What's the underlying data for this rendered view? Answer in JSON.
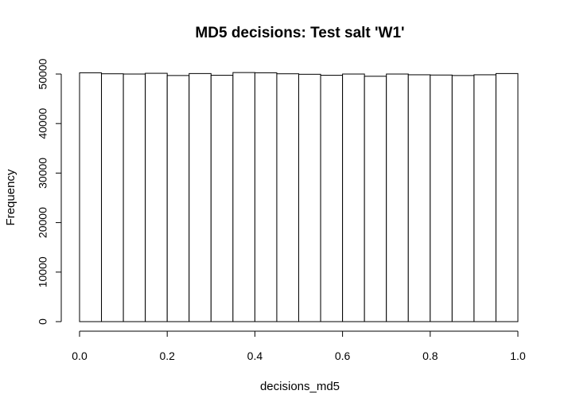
{
  "chart_data": {
    "type": "bar",
    "title": "MD5 decisions: Test salt 'W1'",
    "xlabel": "decisions_md5",
    "ylabel": "Frequency",
    "xlim": [
      0,
      1
    ],
    "ylim": [
      0,
      50000
    ],
    "bin_edges": [
      0.0,
      0.05,
      0.1,
      0.15,
      0.2,
      0.25,
      0.3,
      0.35,
      0.4,
      0.45,
      0.5,
      0.55,
      0.6,
      0.65,
      0.7,
      0.75,
      0.8,
      0.85,
      0.9,
      0.95,
      1.0
    ],
    "values": [
      50250,
      50050,
      50000,
      50150,
      49700,
      50100,
      49750,
      50300,
      50250,
      50050,
      49950,
      49750,
      50000,
      49550,
      50000,
      49850,
      49800,
      49700,
      49850,
      50100
    ],
    "x_ticks": [
      {
        "value": 0.0,
        "label": "0.0"
      },
      {
        "value": 0.2,
        "label": "0.2"
      },
      {
        "value": 0.4,
        "label": "0.4"
      },
      {
        "value": 0.6,
        "label": "0.6"
      },
      {
        "value": 0.8,
        "label": "0.8"
      },
      {
        "value": 1.0,
        "label": "1.0"
      }
    ],
    "y_ticks": [
      {
        "value": 0,
        "label": "0"
      },
      {
        "value": 10000,
        "label": "10000"
      },
      {
        "value": 20000,
        "label": "20000"
      },
      {
        "value": 30000,
        "label": "30000"
      },
      {
        "value": 40000,
        "label": "40000"
      },
      {
        "value": 50000,
        "label": "50000"
      }
    ],
    "grid": false,
    "legend": "none",
    "colors": {
      "bar_fill": "#ffffff",
      "bar_stroke": "#000000",
      "background": "#ffffff"
    }
  }
}
